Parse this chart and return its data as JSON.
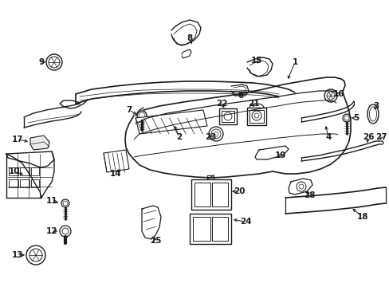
{
  "bg_color": "#ffffff",
  "line_color": "#1a1a1a",
  "text_color": "#1a1a1a",
  "fig_width": 4.89,
  "fig_height": 3.6,
  "dpi": 100
}
